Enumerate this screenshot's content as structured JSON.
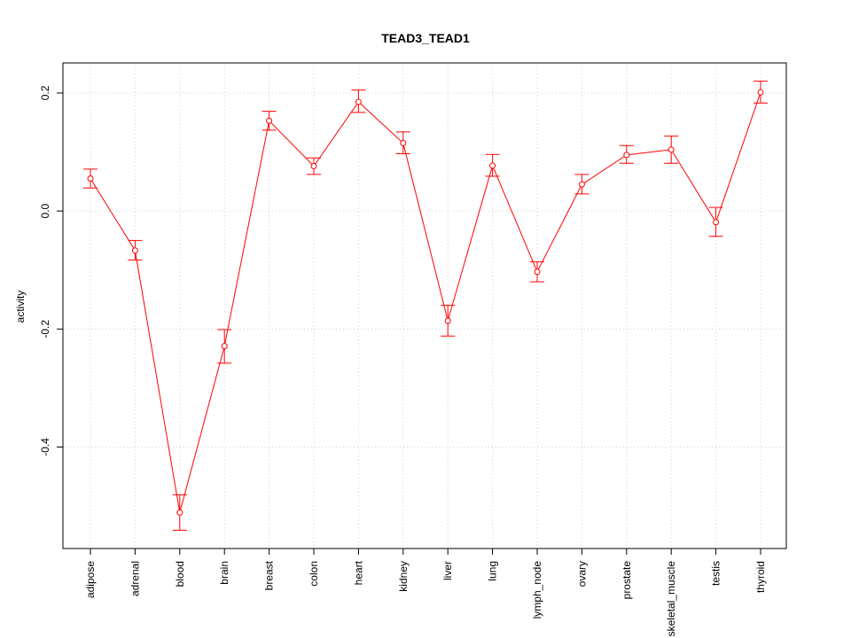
{
  "chart_data": {
    "type": "line",
    "title": "TEAD3_TEAD1",
    "xlabel": "",
    "ylabel": "activity",
    "categories": [
      "adipose",
      "adrenal",
      "blood",
      "brain",
      "breast",
      "colon",
      "heart",
      "kidney",
      "liver",
      "lung",
      "lymph_node",
      "ovary",
      "prostate",
      "skeletal_muscle",
      "testis",
      "thyroid"
    ],
    "series": [
      {
        "values": [
          0.055,
          -0.067,
          -0.511,
          -0.229,
          0.153,
          0.076,
          0.185,
          0.115,
          -0.186,
          0.077,
          -0.103,
          0.045,
          0.095,
          0.104,
          -0.019,
          0.201
        ],
        "err_low": [
          0.039,
          -0.083,
          -0.541,
          -0.258,
          0.137,
          0.062,
          0.167,
          0.097,
          -0.212,
          0.059,
          -0.12,
          0.029,
          0.081,
          0.081,
          -0.043,
          0.183
        ],
        "err_high": [
          0.071,
          -0.05,
          -0.481,
          -0.201,
          0.169,
          0.09,
          0.205,
          0.134,
          -0.16,
          0.096,
          -0.086,
          0.062,
          0.111,
          0.127,
          0.006,
          0.22
        ]
      }
    ],
    "yticks": [
      -0.4,
      -0.2,
      0.0,
      0.2
    ],
    "ytick_labels": [
      "-0.4",
      "-0.2",
      "0.0",
      "0.2"
    ],
    "ylim": [
      -0.572,
      0.251
    ],
    "grid": true,
    "colors": {
      "series": "#ff0000",
      "grid": "#d3d3d3",
      "axis": "#000000"
    }
  }
}
